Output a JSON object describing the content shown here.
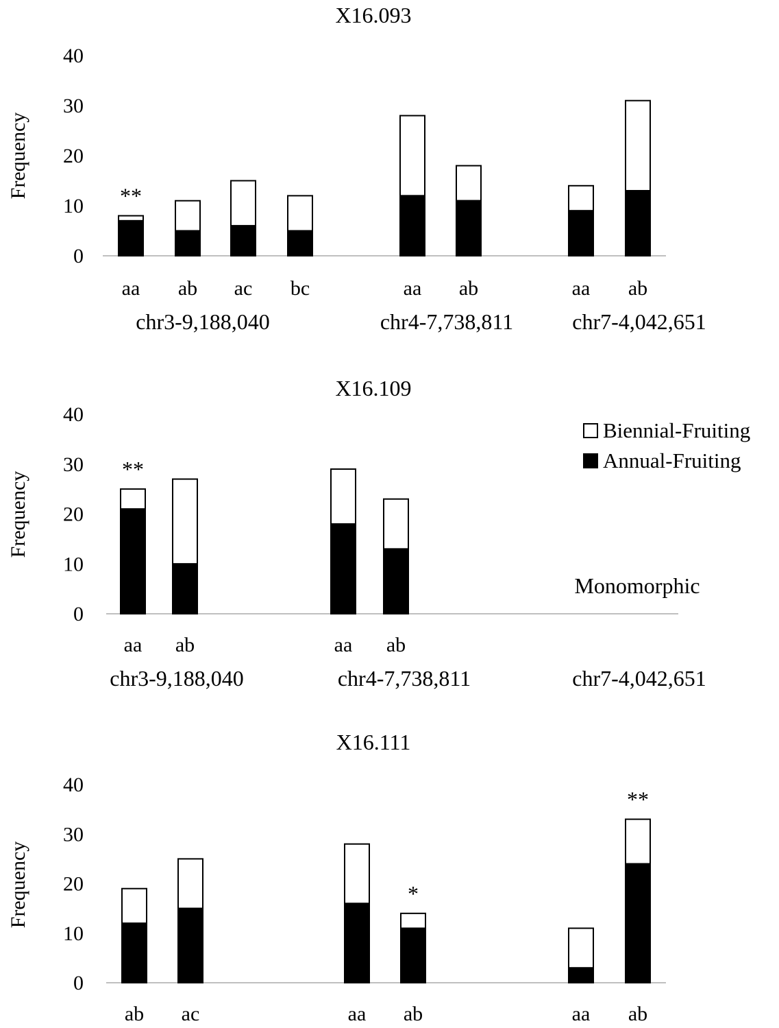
{
  "legend": {
    "items": [
      {
        "label": "Biennial-Fruiting",
        "color": "#ffffff"
      },
      {
        "label": "Annual-Fruiting",
        "color": "#000000"
      }
    ],
    "placement": "right of middle panel"
  },
  "chart_data": [
    {
      "type": "bar",
      "stacked": true,
      "title": "X16.093",
      "ylabel": "Frequency",
      "ylim": [
        0,
        40
      ],
      "yticks": [
        0,
        10,
        20,
        30,
        40
      ],
      "groups": [
        {
          "label": "chr3-9,188,040",
          "categories": [
            {
              "label": "aa",
              "annual": 7,
              "total": 8,
              "sig": "**"
            },
            {
              "label": "ab",
              "annual": 5,
              "total": 11,
              "sig": ""
            },
            {
              "label": "ac",
              "annual": 6,
              "total": 15,
              "sig": ""
            },
            {
              "label": "bc",
              "annual": 5,
              "total": 12,
              "sig": ""
            }
          ]
        },
        {
          "label": "chr4-7,738,811",
          "categories": [
            {
              "label": "aa",
              "annual": 12,
              "total": 28,
              "sig": ""
            },
            {
              "label": "ab",
              "annual": 11,
              "total": 18,
              "sig": ""
            }
          ]
        },
        {
          "label": "chr7-4,042,651",
          "categories": [
            {
              "label": "aa",
              "annual": 9,
              "total": 14,
              "sig": ""
            },
            {
              "label": "ab",
              "annual": 13,
              "total": 31,
              "sig": ""
            }
          ]
        }
      ]
    },
    {
      "type": "bar",
      "stacked": true,
      "title": "X16.109",
      "ylabel": "Frequency",
      "ylim": [
        0,
        40
      ],
      "yticks": [
        0,
        10,
        20,
        30,
        40
      ],
      "groups": [
        {
          "label": "chr3-9,188,040",
          "categories": [
            {
              "label": "aa",
              "annual": 21,
              "total": 25,
              "sig": "**"
            },
            {
              "label": "ab",
              "annual": 10,
              "total": 27,
              "sig": ""
            }
          ]
        },
        {
          "label": "chr4-7,738,811",
          "categories": [
            {
              "label": "aa",
              "annual": 18,
              "total": 29,
              "sig": ""
            },
            {
              "label": "ab",
              "annual": 13,
              "total": 23,
              "sig": ""
            }
          ]
        },
        {
          "label": "chr7-4,042,651",
          "categories": [],
          "note": "Monomorphic"
        }
      ]
    },
    {
      "type": "bar",
      "stacked": true,
      "title": "X16.111",
      "ylabel": "Frequency",
      "ylim": [
        0,
        40
      ],
      "yticks": [
        0,
        10,
        20,
        30,
        40
      ],
      "groups": [
        {
          "label": "",
          "categories": [
            {
              "label": "ab",
              "annual": 12,
              "total": 19,
              "sig": ""
            },
            {
              "label": "ac",
              "annual": 15,
              "total": 25,
              "sig": ""
            }
          ]
        },
        {
          "label": "",
          "categories": [
            {
              "label": "aa",
              "annual": 16,
              "total": 28,
              "sig": ""
            },
            {
              "label": "ab",
              "annual": 11,
              "total": 14,
              "sig": "*"
            }
          ]
        },
        {
          "label": "",
          "categories": [
            {
              "label": "aa",
              "annual": 3,
              "total": 11,
              "sig": ""
            },
            {
              "label": "ab",
              "annual": 24,
              "total": 33,
              "sig": "**"
            }
          ]
        }
      ]
    }
  ]
}
